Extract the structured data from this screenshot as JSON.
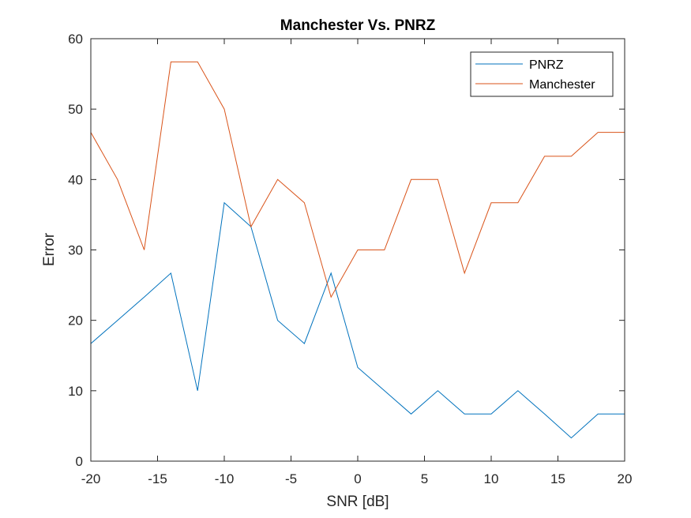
{
  "chart_data": {
    "type": "line",
    "title": "Manchester Vs. PNRZ",
    "xlabel": "SNR [dB]",
    "ylabel": "Error",
    "xlim": [
      -20,
      20
    ],
    "ylim": [
      0,
      60
    ],
    "xticks": [
      -20,
      -15,
      -10,
      -5,
      0,
      5,
      10,
      15,
      20
    ],
    "yticks": [
      0,
      10,
      20,
      30,
      40,
      50,
      60
    ],
    "grid": false,
    "legend_position": "top-right",
    "x": [
      -20,
      -18,
      -16,
      -14,
      -12,
      -10,
      -8,
      -6,
      -4,
      -2,
      0,
      2,
      4,
      6,
      8,
      10,
      12,
      14,
      16,
      18,
      20
    ],
    "series": [
      {
        "name": "PNRZ",
        "color": "#0072BD",
        "values": [
          16.7,
          20,
          23.3,
          26.7,
          10,
          36.7,
          33.3,
          20,
          16.7,
          26.7,
          13.3,
          10,
          6.7,
          10,
          6.7,
          6.7,
          10,
          6.7,
          3.3,
          6.7,
          6.7
        ]
      },
      {
        "name": "Manchester",
        "color": "#D95319",
        "values": [
          46.7,
          40,
          30,
          56.7,
          56.7,
          50,
          33.3,
          40,
          36.7,
          23.3,
          30,
          30,
          40,
          40,
          26.7,
          36.7,
          36.7,
          43.3,
          43.3,
          46.7,
          46.7
        ]
      }
    ]
  }
}
